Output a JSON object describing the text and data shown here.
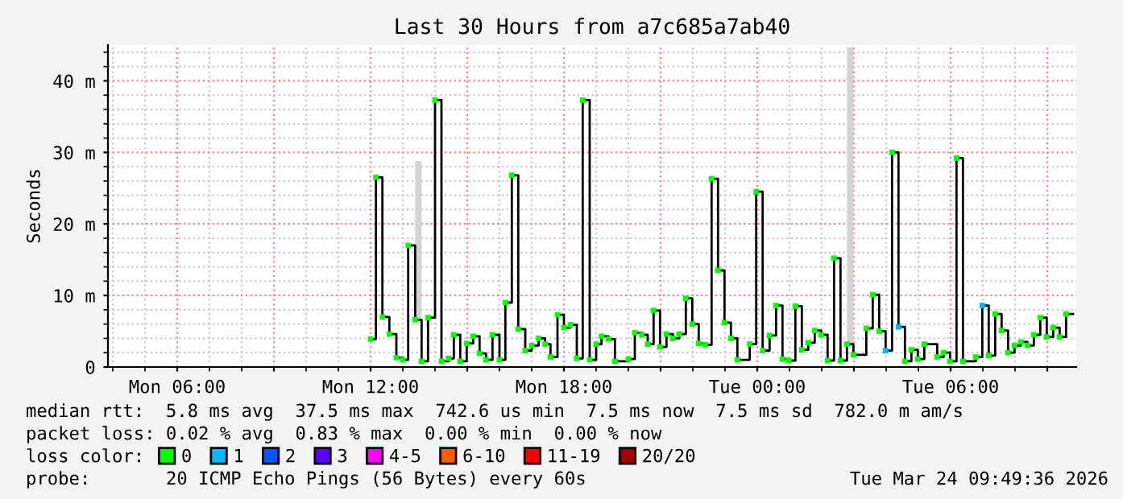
{
  "chart_data": {
    "type": "step",
    "title": "Last 30 Hours from a7c685a7ab40",
    "ylabel": "Seconds",
    "xlim": [
      "2026-03-23T03:51",
      "2026-03-24T09:54"
    ],
    "xticks": [
      {
        "value": "2026-03-23T06:00",
        "label": "Mon 06:00"
      },
      {
        "value": "2026-03-23T09:00",
        "label": null
      },
      {
        "value": "2026-03-23T12:00",
        "label": "Mon 12:00"
      },
      {
        "value": "2026-03-23T15:00",
        "label": null
      },
      {
        "value": "2026-03-23T18:00",
        "label": "Mon 18:00"
      },
      {
        "value": "2026-03-23T21:00",
        "label": null
      },
      {
        "value": "2026-03-24T00:00",
        "label": "Tue 00:00"
      },
      {
        "value": "2026-03-24T03:00",
        "label": null
      },
      {
        "value": "2026-03-24T06:00",
        "label": "Tue 06:00"
      },
      {
        "value": "2026-03-24T09:00",
        "label": null
      }
    ],
    "ylim": [
      0,
      45
    ],
    "yticks": [
      0,
      {
        "value": 10,
        "label": "10 m"
      },
      {
        "value": 20,
        "label": "20 m"
      },
      {
        "value": 30,
        "label": "30 m"
      },
      {
        "value": 40,
        "label": "40 m"
      }
    ],
    "grid": true,
    "legend": "bottom",
    "legend_title": "loss color:",
    "series": [
      {
        "type": "bar",
        "color": "#d3d3d3",
        "x": [
          "2026-03-23T13:29",
          "2026-03-24T02:53"
        ],
        "base": [
          6.6,
          3.2
        ],
        "values": [
          22.2,
          41.5
        ]
      },
      {
        "color": "#000000",
        "x": [
          "2026-03-23T12:00",
          "2026-03-23T12:10",
          "2026-03-23T12:22",
          "2026-03-23T12:35",
          "2026-03-23T12:48",
          "2026-03-23T13:00",
          "2026-03-23T13:10",
          "2026-03-23T13:23",
          "2026-03-23T13:35",
          "2026-03-23T13:47",
          "2026-03-23T14:00",
          "2026-03-23T14:12",
          "2026-03-23T14:25",
          "2026-03-23T14:35",
          "2026-03-23T14:47",
          "2026-03-23T14:59",
          "2026-03-23T15:11",
          "2026-03-23T15:23",
          "2026-03-23T15:35",
          "2026-03-23T15:47",
          "2026-03-23T16:00",
          "2026-03-23T16:11",
          "2026-03-23T16:23",
          "2026-03-23T16:35",
          "2026-03-23T16:48",
          "2026-03-23T17:00",
          "2026-03-23T17:13",
          "2026-03-23T17:25",
          "2026-03-23T17:35",
          "2026-03-23T17:48",
          "2026-03-23T18:00",
          "2026-03-23T18:12",
          "2026-03-23T18:24",
          "2026-03-23T18:35",
          "2026-03-23T18:48",
          "2026-03-23T19:00",
          "2026-03-23T19:10",
          "2026-03-23T19:23",
          "2026-03-23T19:35",
          "2026-03-23T20:00",
          "2026-03-23T20:12",
          "2026-03-23T20:25",
          "2026-03-23T20:36",
          "2026-03-23T20:47",
          "2026-03-23T20:59",
          "2026-03-23T21:11",
          "2026-03-23T21:23",
          "2026-03-23T21:35",
          "2026-03-23T21:47",
          "2026-03-23T21:59",
          "2026-03-23T22:11",
          "2026-03-23T22:23",
          "2026-03-23T22:35",
          "2026-03-23T22:47",
          "2026-03-23T22:59",
          "2026-03-23T23:11",
          "2026-03-23T23:23",
          "2026-03-23T23:46",
          "2026-03-23T23:58",
          "2026-03-24T00:10",
          "2026-03-24T00:23",
          "2026-03-24T00:35",
          "2026-03-24T00:47",
          "2026-03-24T00:59",
          "2026-03-24T01:11",
          "2026-03-24T01:23",
          "2026-03-24T01:35",
          "2026-03-24T01:47",
          "2026-03-24T01:59",
          "2026-03-24T02:11",
          "2026-03-24T02:23",
          "2026-03-24T02:35",
          "2026-03-24T02:47",
          "2026-03-24T02:59",
          "2026-03-24T03:23",
          "2026-03-24T03:35",
          "2026-03-24T03:47",
          "2026-03-24T03:59",
          "2026-03-24T04:11",
          "2026-03-24T04:23",
          "2026-03-24T04:35",
          "2026-03-24T04:47",
          "2026-03-24T04:59",
          "2026-03-24T05:11",
          "2026-03-24T05:35",
          "2026-03-24T05:47",
          "2026-03-24T05:59",
          "2026-03-24T06:11",
          "2026-03-24T06:23",
          "2026-03-24T06:47",
          "2026-03-24T06:59",
          "2026-03-24T07:11",
          "2026-03-24T07:23",
          "2026-03-24T07:35",
          "2026-03-24T07:47",
          "2026-03-24T07:59",
          "2026-03-24T08:11",
          "2026-03-24T08:23",
          "2026-03-24T08:35",
          "2026-03-24T08:47",
          "2026-03-24T08:59",
          "2026-03-24T09:11",
          "2026-03-24T09:23",
          "2026-03-24T09:35",
          "2026-03-24T09:48"
        ],
        "values": [
          3.9,
          26.5,
          7.0,
          4.6,
          1.3,
          1.0,
          17.0,
          6.6,
          0.8,
          6.9,
          37.3,
          0.8,
          1.2,
          4.5,
          0.8,
          3.3,
          4.3,
          1.9,
          1.0,
          4.5,
          1.0,
          9.0,
          26.8,
          5.3,
          2.3,
          3.0,
          4.0,
          3.2,
          1.4,
          7.3,
          5.5,
          5.9,
          1.2,
          37.3,
          1.0,
          3.2,
          4.3,
          3.9,
          0.8,
          1.1,
          4.8,
          4.5,
          3.2,
          7.9,
          2.8,
          4.6,
          4.0,
          4.6,
          9.6,
          6.0,
          3.3,
          3.1,
          26.3,
          13.5,
          6.2,
          4.0,
          1.0,
          3.2,
          24.5,
          2.3,
          4.4,
          8.6,
          1.1,
          0.9,
          8.5,
          2.4,
          3.4,
          5.1,
          4.5,
          0.9,
          15.2,
          0.9,
          3.2,
          1.7,
          5.4,
          10.1,
          5.0,
          2.3,
          30.0,
          5.6,
          0.8,
          2.4,
          1.1,
          3.2,
          1.4,
          2.0,
          0.8,
          29.2,
          0.8,
          1.4,
          8.6,
          1.6,
          7.4,
          5.1,
          2.0,
          3.0,
          3.5,
          3.0,
          4.5,
          6.9,
          4.2,
          5.5,
          4.2,
          7.4,
          7.4
        ]
      },
      {
        "type": "scatter",
        "name": "0",
        "color": "#00ff00",
        "marker": "square",
        "x": [
          "2026-03-23T12:00",
          "2026-03-23T12:10",
          "2026-03-23T12:22",
          "2026-03-23T12:35",
          "2026-03-23T12:48",
          "2026-03-23T13:00",
          "2026-03-23T13:10",
          "2026-03-23T13:23",
          "2026-03-23T13:35",
          "2026-03-23T13:47",
          "2026-03-23T14:00",
          "2026-03-23T14:12",
          "2026-03-23T14:25",
          "2026-03-23T14:35",
          "2026-03-23T14:47",
          "2026-03-23T14:59",
          "2026-03-23T15:11",
          "2026-03-23T15:23",
          "2026-03-23T15:35",
          "2026-03-23T15:47",
          "2026-03-23T16:00",
          "2026-03-23T16:11",
          "2026-03-23T16:23",
          "2026-03-23T16:35",
          "2026-03-23T16:48",
          "2026-03-23T17:00",
          "2026-03-23T17:13",
          "2026-03-23T17:25",
          "2026-03-23T17:35",
          "2026-03-23T17:48",
          "2026-03-23T18:00",
          "2026-03-23T18:12",
          "2026-03-23T18:24",
          "2026-03-23T18:35",
          "2026-03-23T18:48",
          "2026-03-23T19:00",
          "2026-03-23T19:10",
          "2026-03-23T19:23",
          "2026-03-23T19:35",
          "2026-03-23T20:00",
          "2026-03-23T20:12",
          "2026-03-23T20:25",
          "2026-03-23T20:36",
          "2026-03-23T20:47",
          "2026-03-23T20:59",
          "2026-03-23T21:11",
          "2026-03-23T21:23",
          "2026-03-23T21:35",
          "2026-03-23T21:47",
          "2026-03-23T21:59",
          "2026-03-23T22:11",
          "2026-03-23T22:23",
          "2026-03-23T22:35",
          "2026-03-23T22:47",
          "2026-03-23T22:59",
          "2026-03-23T23:11",
          "2026-03-23T23:23",
          "2026-03-23T23:46",
          "2026-03-23T23:58",
          "2026-03-24T00:10",
          "2026-03-24T00:23",
          "2026-03-24T00:35",
          "2026-03-24T00:47",
          "2026-03-24T00:59",
          "2026-03-24T01:11",
          "2026-03-24T01:23",
          "2026-03-24T01:35",
          "2026-03-24T01:47",
          "2026-03-24T01:59",
          "2026-03-24T02:11",
          "2026-03-24T02:23",
          "2026-03-24T02:35",
          "2026-03-24T02:47",
          "2026-03-24T02:59",
          "2026-03-24T03:23",
          "2026-03-24T03:35",
          "2026-03-24T03:47",
          "2026-03-24T04:11",
          "2026-03-24T04:35",
          "2026-03-24T04:47",
          "2026-03-24T04:59",
          "2026-03-24T05:11",
          "2026-03-24T05:35",
          "2026-03-24T05:47",
          "2026-03-24T05:59",
          "2026-03-24T06:11",
          "2026-03-24T06:23",
          "2026-03-24T06:47",
          "2026-03-24T07:11",
          "2026-03-24T07:23",
          "2026-03-24T07:35",
          "2026-03-24T07:47",
          "2026-03-24T07:59",
          "2026-03-24T08:11",
          "2026-03-24T08:23",
          "2026-03-24T08:35",
          "2026-03-24T08:47",
          "2026-03-24T08:59",
          "2026-03-24T09:11",
          "2026-03-24T09:23",
          "2026-03-24T09:35"
        ],
        "values": [
          3.9,
          26.5,
          7.0,
          4.6,
          1.3,
          1.0,
          17.0,
          6.6,
          0.8,
          6.9,
          37.3,
          0.8,
          1.2,
          4.5,
          0.8,
          3.3,
          4.3,
          1.9,
          1.0,
          4.5,
          1.0,
          9.0,
          26.8,
          5.3,
          2.3,
          3.0,
          4.0,
          3.2,
          1.4,
          7.3,
          5.5,
          5.9,
          1.2,
          37.3,
          1.0,
          3.2,
          4.3,
          3.9,
          0.8,
          1.1,
          4.8,
          4.5,
          3.2,
          7.9,
          2.8,
          4.6,
          4.0,
          4.6,
          9.6,
          6.0,
          3.3,
          3.1,
          26.3,
          13.5,
          6.2,
          4.0,
          1.0,
          3.2,
          24.5,
          2.3,
          4.4,
          8.6,
          1.1,
          0.9,
          8.5,
          2.4,
          3.4,
          5.1,
          4.5,
          0.9,
          15.2,
          0.9,
          3.2,
          1.7,
          5.4,
          10.1,
          5.0,
          30.0,
          0.8,
          2.4,
          1.1,
          3.2,
          1.4,
          2.0,
          0.8,
          29.2,
          0.8,
          1.4,
          1.6,
          7.4,
          5.1,
          2.0,
          3.0,
          3.5,
          3.0,
          4.5,
          6.9,
          4.2,
          5.5,
          4.2,
          7.4
        ]
      },
      {
        "type": "scatter",
        "name": "1",
        "color": "#00b8ff",
        "marker": "square",
        "x": [
          "2026-03-24T03:59",
          "2026-03-24T04:23",
          "2026-03-24T06:59"
        ],
        "values": [
          2.3,
          5.6,
          8.6
        ]
      },
      {
        "type": "scatter",
        "name": "2",
        "color": "#0059ff",
        "marker": "square"
      },
      {
        "type": "scatter",
        "name": "3",
        "color": "#5e00ff",
        "marker": "square"
      },
      {
        "type": "scatter",
        "name": "4-5",
        "color": "#ff00ff",
        "marker": "square"
      },
      {
        "type": "scatter",
        "name": "6-10",
        "color": "#ff5e00",
        "marker": "square"
      },
      {
        "type": "scatter",
        "name": "11-19",
        "color": "#ff0000",
        "marker": "square"
      },
      {
        "type": "scatter",
        "name": "20/20",
        "color": "#a10000",
        "marker": "square"
      }
    ],
    "annotations": [
      "median rtt:  5.8 ms avg  37.5 ms max  742.6 us min  7.5 ms now  7.5 ms sd  782.0 m am/s",
      "packet loss: 0.02 % avg  0.83 % max  0.00 % min  0.00 % now",
      "probe:       20 ICMP Echo Pings (56 Bytes) every 60s",
      "Tue Mar 24 09:49:36 2026"
    ]
  }
}
